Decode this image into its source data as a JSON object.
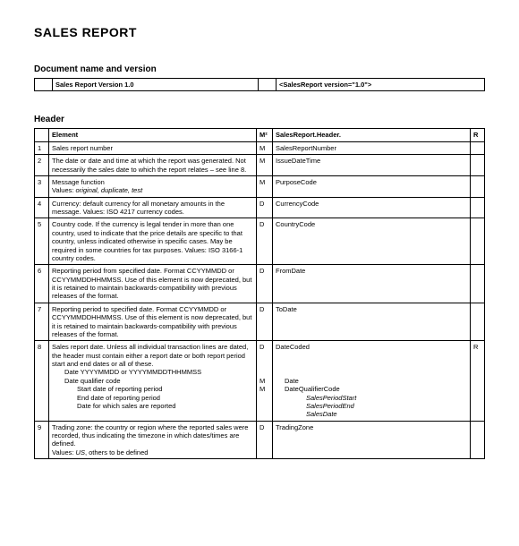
{
  "title": "SALES REPORT",
  "docSection": {
    "heading": "Document name and version",
    "left": "Sales Report Version 1.0",
    "right": "<SalesReport version=\"1.0\">"
  },
  "headerSection": {
    "heading": "Header",
    "cols": {
      "n": "",
      "el": "Element",
      "m": "M²",
      "sr": "SalesReport.Header.",
      "r": "R"
    },
    "rows": [
      {
        "n": "1",
        "el": "Sales report number",
        "m": "M",
        "sr": "SalesReportNumber",
        "r": ""
      },
      {
        "n": "2",
        "el": "The date or date and time at which the report was generated. Not necessarily the sales date to which the report relates – see line 8.",
        "m": "M",
        "sr": "IssueDateTime",
        "r": ""
      },
      {
        "n": "3",
        "el_main": "Message function",
        "el_sub": "Values: ",
        "el_sub_i": "original, duplicate, test",
        "m": "M",
        "sr": "PurposeCode",
        "r": ""
      },
      {
        "n": "4",
        "el": "Currency: default currency for all monetary amounts in the message. Values: ISO 4217 currency codes.",
        "m": "D",
        "sr": "CurrencyCode",
        "r": ""
      },
      {
        "n": "5",
        "el": "Country code. If the currency is legal tender in more than one country, used to indicate that the price details are specific to that country, unless indicated otherwise in specific cases. May be required in some countries for tax purposes. Values: ISO 3166-1 country codes.",
        "m": "D",
        "sr": "CountryCode",
        "r": ""
      },
      {
        "n": "6",
        "el": "Reporting period from specified date. Format CCYYMMDD or CCYYMMDDHHMMSS. Use of this element is now deprecated, but it is retained to maintain backwards-compatibility with previous releases of the format.",
        "m": "D",
        "sr": "FromDate",
        "r": ""
      },
      {
        "n": "7",
        "el": "Reporting period to specified date. Format CCYYMMDD or CCYYMMDDHHMMSS. Use of this element is now deprecated, but it is retained to maintain backwards-compatibility with previous releases of the format.",
        "m": "D",
        "sr": "ToDate",
        "r": ""
      },
      {
        "n": "8",
        "el_main": "Sales report date. Unless all individual transaction lines are dated, the header must contain either a report date or both report period start and end dates or all of these.",
        "el_l1a": "Date YYYYMMDD or YYYYMMDDTHHMMSS",
        "el_l1b": "Date qualifier code",
        "el_l2a": "Start date of reporting period",
        "el_l2b": "End date of reporting period",
        "el_l2c": "Date for which sales are reported",
        "m_main": "D",
        "m_l1a": "M",
        "m_l1b": "M",
        "sr_main": "DateCoded",
        "sr_l1a": "Date",
        "sr_l1b": "DateQualifierCode",
        "sr_l2a": "SalesPeriodStart",
        "sr_l2b": "SalesPeriodEnd",
        "sr_l2c": "SalesDate",
        "r": "R"
      },
      {
        "n": "9",
        "el_main": "Trading zone: the country or region where the reported sales were recorded, thus indicating the timezone in which dates/times are defined.",
        "el_sub": "Values: ",
        "el_sub_i": "US",
        "el_sub_tail": ", others to be defined",
        "m": "D",
        "sr": "TradingZone",
        "r": ""
      }
    ]
  }
}
